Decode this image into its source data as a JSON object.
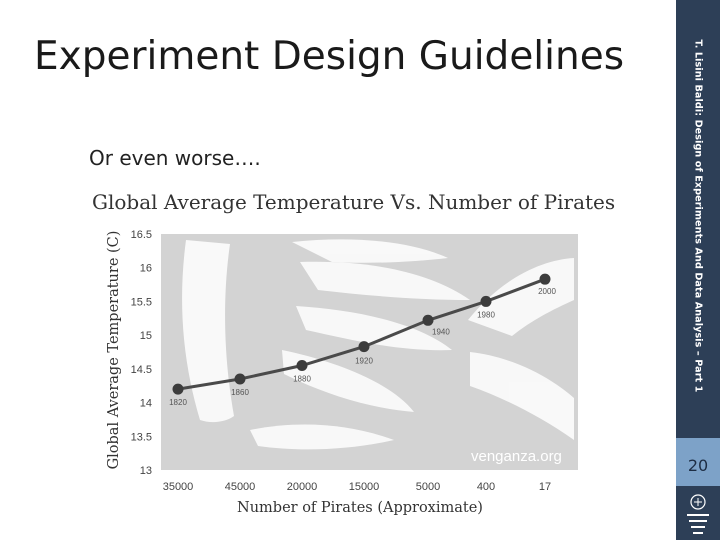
{
  "slide": {
    "title": "Experiment Design Guidelines",
    "subtitle": "Or even worse….",
    "side_text": "T. Lisini Baldi: Design of Experiments And Data Analysis – Part 1",
    "page_number": "20",
    "watermark": "venganza.org"
  },
  "colors": {
    "sidebar": "#2d3f57",
    "page_box": "#7da2c8",
    "plot_background": "#d3d3d3",
    "line": "#4a4a4a",
    "marker": "#3c3c3c"
  },
  "chart_data": {
    "type": "line",
    "title": "Global Average Temperature Vs. Number of Pirates",
    "xlabel": "Number of Pirates (Approximate)",
    "ylabel": "Global Average Temperature (C)",
    "categories": [
      "35000",
      "45000",
      "20000",
      "15000",
      "5000",
      "400",
      "17"
    ],
    "series": [
      {
        "values": [
          14.2,
          14.35,
          14.55,
          14.83,
          15.22,
          15.5,
          15.83
        ]
      }
    ],
    "point_labels": [
      "1820",
      "1860",
      "1880",
      "1920",
      "1940",
      "1980",
      "2000"
    ],
    "y_ticks": [
      "16.5",
      "16",
      "15.5",
      "15",
      "14.5",
      "14",
      "13.5",
      "13"
    ],
    "ylim": [
      13,
      16.5
    ],
    "grid": false,
    "background_graphic": "fish-skeleton"
  }
}
